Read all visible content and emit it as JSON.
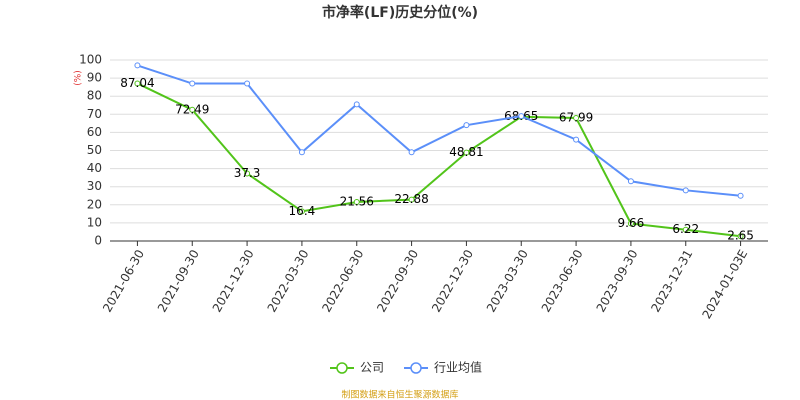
{
  "chart_data": {
    "type": "line",
    "title": "市净率(LF)历史分位(%)",
    "y_label": "(%)",
    "source": "制图数据来自恒生聚源数据库",
    "categories": [
      "2021-06-30",
      "2021-09-30",
      "2021-12-30",
      "2022-03-30",
      "2022-06-30",
      "2022-09-30",
      "2022-12-30",
      "2023-03-30",
      "2023-06-30",
      "2023-09-30",
      "2023-12-31",
      "2024-01-03E"
    ],
    "series": [
      {
        "name": "公司",
        "color": "#52c41a",
        "values": [
          87.04,
          72.49,
          37.3,
          16.4,
          21.56,
          22.88,
          48.81,
          68.65,
          67.99,
          9.66,
          6.22,
          2.65
        ],
        "data_labels": true
      },
      {
        "name": "行业均值",
        "color": "#5b8ff9",
        "values": [
          97,
          87,
          87,
          49,
          75.5,
          49,
          64,
          69,
          56,
          33,
          28,
          25
        ],
        "data_labels": false
      }
    ],
    "ylim": [
      0,
      100
    ],
    "yticks": [
      0,
      10,
      20,
      30,
      40,
      50,
      60,
      70,
      80,
      90,
      100
    ],
    "grid": true
  }
}
